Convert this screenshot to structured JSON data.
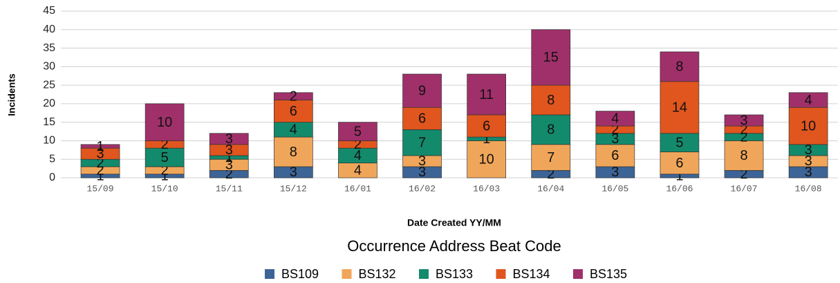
{
  "chart_data": {
    "type": "stacked_bar",
    "legend_title": "Occurrence Address Beat Code",
    "x_label": "Date Created YY/MM",
    "y_label": "Incidents",
    "categories": [
      "15/09",
      "15/10",
      "15/11",
      "15/12",
      "16/01",
      "16/02",
      "16/03",
      "16/04",
      "16/05",
      "16/06",
      "16/07",
      "16/08"
    ],
    "series": [
      {
        "name": "BS109",
        "color": "#3d6496",
        "values": [
          1,
          1,
          2,
          3,
          0,
          3,
          0,
          2,
          3,
          1,
          2,
          3
        ]
      },
      {
        "name": "BS132",
        "color": "#f0a65a",
        "values": [
          2,
          2,
          3,
          8,
          4,
          3,
          10,
          7,
          6,
          6,
          8,
          3
        ]
      },
      {
        "name": "BS133",
        "color": "#138a6c",
        "values": [
          2,
          5,
          1,
          4,
          4,
          7,
          1,
          8,
          3,
          5,
          2,
          3
        ]
      },
      {
        "name": "BS134",
        "color": "#e0561e",
        "values": [
          3,
          2,
          3,
          6,
          2,
          6,
          6,
          8,
          2,
          14,
          2,
          10
        ]
      },
      {
        "name": "BS135",
        "color": "#a0306a",
        "values": [
          1,
          10,
          3,
          2,
          5,
          9,
          11,
          15,
          4,
          8,
          3,
          4
        ]
      }
    ],
    "ylim": [
      0,
      45
    ],
    "yticks": [
      0,
      5,
      10,
      15,
      20,
      25,
      30,
      35,
      40,
      45
    ],
    "grid": true
  }
}
